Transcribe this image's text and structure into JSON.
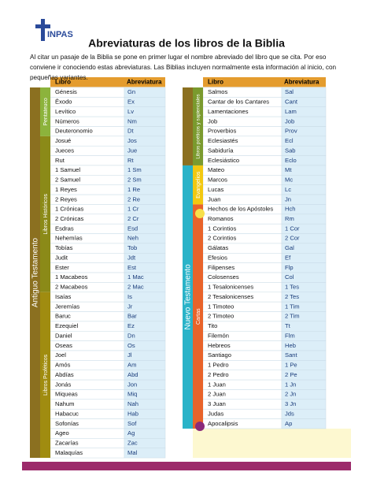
{
  "header": {
    "logo": "INPAS",
    "title": "Abreviaturas de los libros de la Biblia",
    "intro": "Al citar un pasaje de la Biblia se pone en primer lugar el nombre abreviado del libro que se cita. Por eso conviene ir conociendo estas abreviaturas. Las Biblias incluyen normalmente esta información al inicio, con pequeñas variantes."
  },
  "table": {
    "headers": [
      "Libro",
      "Abreviatura",
      "Libro",
      "Abreviatura"
    ],
    "testaments": [
      "Antiguo Testamento",
      "Nuevo Testamento"
    ],
    "columns": [
      {
        "groups": [
          {
            "label": "Pentateuco",
            "books": [
              [
                "Génesis",
                "Gn"
              ],
              [
                "Éxodo",
                "Ex"
              ],
              [
                "Levítico",
                "Lv"
              ],
              [
                "Números",
                "Nm"
              ],
              [
                "Deuteronomio",
                "Dt"
              ]
            ]
          },
          {
            "label": "Libros Históricos",
            "books": [
              [
                "Josué",
                "Jos"
              ],
              [
                "Jueces",
                "Jue"
              ],
              [
                "Rut",
                "Rt"
              ],
              [
                "1 Samuel",
                "1 Sm"
              ],
              [
                "2 Samuel",
                "2 Sm"
              ],
              [
                "1 Reyes",
                "1 Re"
              ],
              [
                "2 Reyes",
                "2 Re"
              ],
              [
                "1 Crónicas",
                "1 Cr"
              ],
              [
                "2 Crónicas",
                "2 Cr"
              ],
              [
                "Esdras",
                "Esd"
              ],
              [
                "Nehemías",
                "Neh"
              ],
              [
                "Tobías",
                "Tob"
              ],
              [
                "Judit",
                "Jdt"
              ],
              [
                "Ester",
                "Est"
              ],
              [
                "1 Macabeos",
                "1 Mac"
              ],
              [
                "2 Macabeos",
                "2 Mac"
              ]
            ]
          },
          {
            "label": "Libros Proféticos",
            "books": [
              [
                "Isaías",
                "Is"
              ],
              [
                "Jeremías",
                "Jr"
              ],
              [
                "Baruc",
                "Bar"
              ],
              [
                "Ezequiel",
                "Ez"
              ],
              [
                "Daniel",
                "Dn"
              ],
              [
                "Oseas",
                "Os"
              ],
              [
                "Joel",
                "Jl"
              ],
              [
                "Amós",
                "Am"
              ],
              [
                "Abdías",
                "Abd"
              ],
              [
                "Jonás",
                "Jon"
              ],
              [
                "Miqueas",
                "Miq"
              ],
              [
                "Nahum",
                "Nah"
              ],
              [
                "Habacuc",
                "Hab"
              ],
              [
                "Sofonías",
                "Sof"
              ],
              [
                "Ageo",
                "Ag"
              ],
              [
                "Zacarías",
                "Zac"
              ],
              [
                "Malaquías",
                "Mal"
              ]
            ]
          }
        ]
      },
      {
        "groups": [
          {
            "label": "Libros poéticos y sapienciales",
            "books": [
              [
                "Salmos",
                "Sal"
              ],
              [
                "Cantar de los Cantares",
                "Cant"
              ],
              [
                "Lamentaciones",
                "Lam"
              ],
              [
                "Job",
                "Job"
              ],
              [
                "Proverbios",
                "Prov"
              ],
              [
                "Eclesiastés",
                "Ecl"
              ],
              [
                "Sabiduría",
                "Sab"
              ],
              [
                "Eclesiástico",
                "Eclo"
              ]
            ]
          },
          {
            "label": "Evangelios",
            "books": [
              [
                "Mateo",
                "Mt"
              ],
              [
                "Marcos",
                "Mc"
              ],
              [
                "Lucas",
                "Lc"
              ],
              [
                "Juan",
                "Jn"
              ]
            ]
          },
          {
            "label": "Cartas",
            "books": [
              [
                "Hechos de los Apóstoles",
                "Hch"
              ],
              [
                "Romanos",
                "Rm"
              ],
              [
                "1 Corintios",
                "1 Cor"
              ],
              [
                "2 Corintios",
                "2 Cor"
              ],
              [
                "Gálatas",
                "Gal"
              ],
              [
                "Efesios",
                "Ef"
              ],
              [
                "Filipenses",
                "Flp"
              ],
              [
                "Colosenses",
                "Col"
              ],
              [
                "1 Tesalonicenses",
                "1 Tes"
              ],
              [
                "2 Tesalonicenses",
                "2 Tes"
              ],
              [
                "1 Timoteo",
                "1 Tim"
              ],
              [
                "2 Timoteo",
                "2 Tim"
              ],
              [
                "Tito",
                "Tt"
              ],
              [
                "Filemón",
                "Flm"
              ],
              [
                "Hebreos",
                "Heb"
              ],
              [
                "Santiago",
                "Sant"
              ],
              [
                "1 Pedro",
                "1 Pe"
              ],
              [
                "2 Pedro",
                "2 Pe"
              ],
              [
                "1 Juan",
                "1 Jn"
              ],
              [
                "2 Juan",
                "2 Jn"
              ],
              [
                "3 Juan",
                "3 Jn"
              ],
              [
                "Judas",
                "Jds"
              ],
              [
                "Apocalipsis",
                "Ap"
              ]
            ]
          }
        ]
      }
    ]
  }
}
